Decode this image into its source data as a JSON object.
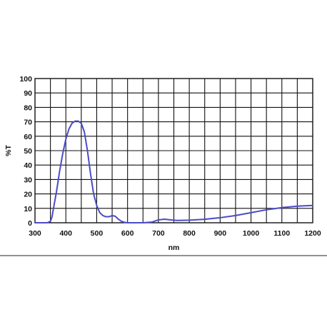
{
  "chart_data": {
    "type": "line",
    "xlabel": "nm",
    "ylabel": "%T",
    "xlim": [
      300,
      1200
    ],
    "ylim": [
      0,
      100
    ],
    "x_ticks": [
      300,
      400,
      500,
      600,
      700,
      800,
      900,
      1000,
      1100,
      1200
    ],
    "y_ticks": [
      0,
      10,
      20,
      30,
      40,
      50,
      60,
      70,
      80,
      90,
      100
    ],
    "x_tick_labels": [
      "300",
      "400",
      "500",
      "600",
      "700",
      "800",
      "900",
      "1000",
      "1100",
      "1200"
    ],
    "y_tick_labels": [
      "0",
      "10",
      "20",
      "30",
      "40",
      "50",
      "60",
      "70",
      "80",
      "90",
      "100"
    ],
    "grid": true,
    "grid_x_step": 50,
    "grid_y_step": 10,
    "series": [
      {
        "color": "#4b4bc8",
        "points": [
          [
            300,
            0
          ],
          [
            340,
            0
          ],
          [
            350,
            1
          ],
          [
            355,
            4
          ],
          [
            360,
            10
          ],
          [
            370,
            22
          ],
          [
            380,
            36
          ],
          [
            390,
            48
          ],
          [
            400,
            58
          ],
          [
            410,
            65
          ],
          [
            420,
            69
          ],
          [
            430,
            70.5
          ],
          [
            440,
            70.5
          ],
          [
            450,
            69
          ],
          [
            460,
            63
          ],
          [
            470,
            50
          ],
          [
            480,
            34
          ],
          [
            490,
            20
          ],
          [
            500,
            12
          ],
          [
            510,
            7
          ],
          [
            520,
            5
          ],
          [
            530,
            4.2
          ],
          [
            540,
            4.2
          ],
          [
            550,
            5
          ],
          [
            560,
            4.5
          ],
          [
            570,
            2.5
          ],
          [
            580,
            1
          ],
          [
            590,
            0.3
          ],
          [
            600,
            0
          ],
          [
            650,
            0
          ],
          [
            680,
            0.5
          ],
          [
            700,
            2
          ],
          [
            720,
            2.5
          ],
          [
            740,
            2
          ],
          [
            760,
            1.6
          ],
          [
            800,
            1.8
          ],
          [
            850,
            2.4
          ],
          [
            900,
            3.5
          ],
          [
            950,
            5
          ],
          [
            1000,
            7
          ],
          [
            1050,
            9
          ],
          [
            1100,
            10.5
          ],
          [
            1150,
            11.5
          ],
          [
            1200,
            12
          ]
        ]
      }
    ]
  }
}
